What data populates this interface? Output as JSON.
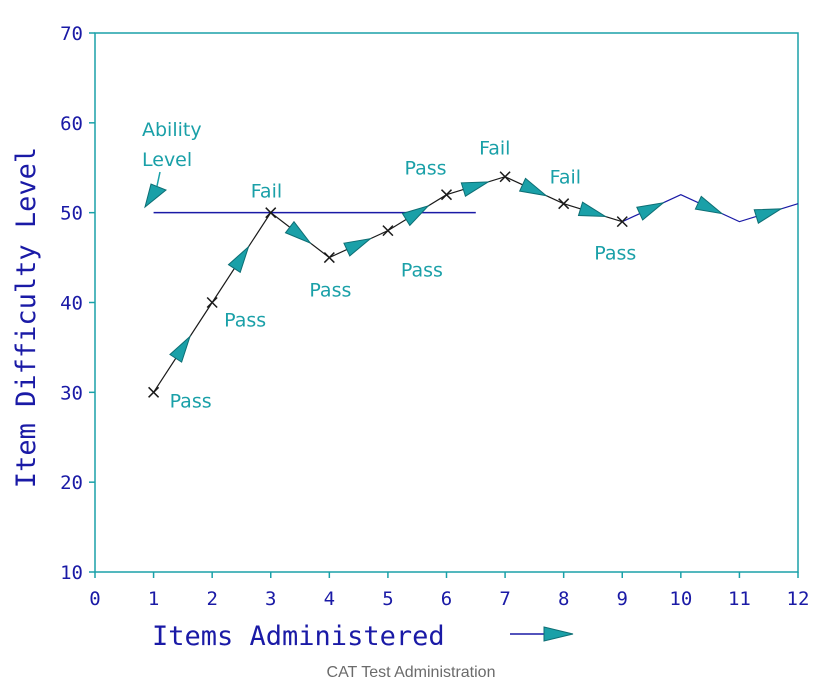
{
  "caption": "CAT Test Administration",
  "colors": {
    "axis": "#1aa0a8",
    "text": "#1a1aa6",
    "annotation": "#1aa0a8",
    "path": "#1a1a1a",
    "path_tail": "#1a1aa6",
    "arrow": "#1aa0a8",
    "ability_line": "#1a1aa6"
  },
  "chart_data": {
    "type": "line",
    "title": "",
    "xlabel": "Items Administered",
    "ylabel": "Item Difficulty Level",
    "xlim": [
      0,
      12
    ],
    "ylim": [
      10,
      70
    ],
    "xticks": [
      0,
      1,
      2,
      3,
      4,
      5,
      6,
      7,
      8,
      9,
      10,
      11,
      12
    ],
    "yticks": [
      10,
      20,
      30,
      40,
      50,
      60,
      70
    ],
    "grid": false,
    "ability_level": {
      "y": 50,
      "x_range": [
        1,
        6.5
      ],
      "label_line1": "Ability",
      "label_line2": "Level"
    },
    "items": [
      {
        "x": 1,
        "y": 30,
        "result": "Pass"
      },
      {
        "x": 2,
        "y": 40,
        "result": "Pass"
      },
      {
        "x": 3,
        "y": 50,
        "result": "Fail"
      },
      {
        "x": 4,
        "y": 45,
        "result": "Pass"
      },
      {
        "x": 5,
        "y": 48,
        "result": "Pass"
      },
      {
        "x": 6,
        "y": 52,
        "result": "Pass"
      },
      {
        "x": 7,
        "y": 54,
        "result": "Fail"
      },
      {
        "x": 8,
        "y": 51,
        "result": "Fail"
      },
      {
        "x": 9,
        "y": 49,
        "result": "Pass"
      }
    ],
    "continuation": [
      {
        "x": 9,
        "y": 49
      },
      {
        "x": 10,
        "y": 52
      },
      {
        "x": 11,
        "y": 49
      },
      {
        "x": 12,
        "y": 51
      }
    ]
  }
}
